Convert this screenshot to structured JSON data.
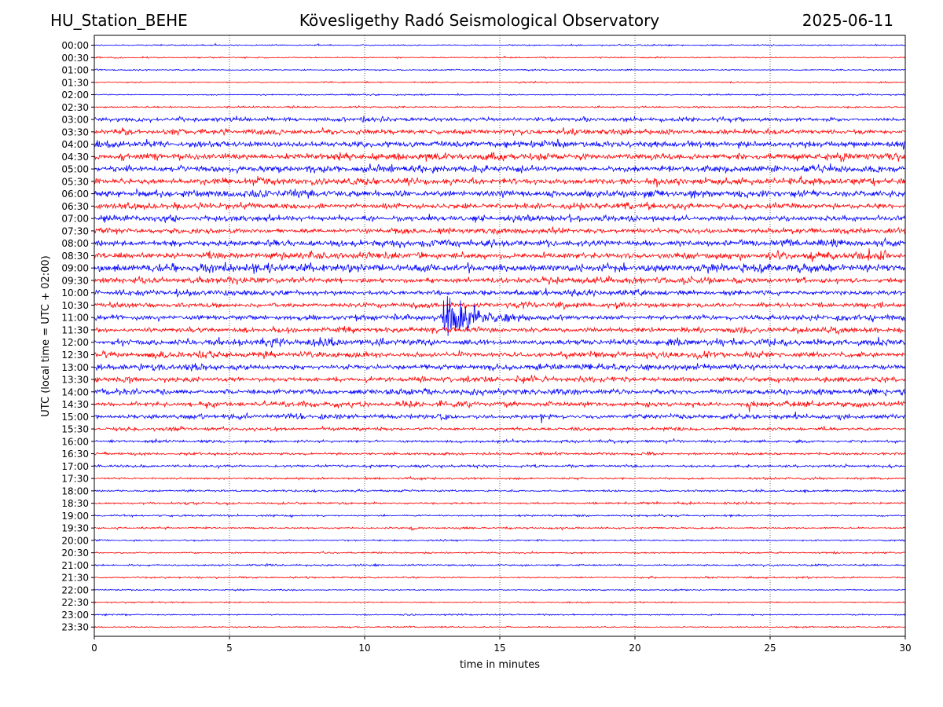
{
  "header": {
    "station": "HU_Station_BEHE",
    "observatory": "Kövesligethy Radó Seismological Observatory",
    "date": "2025-06-11"
  },
  "chart_data": {
    "type": "line",
    "title": "Kövesligethy Radó Seismological Observatory",
    "xlabel": "time in minutes",
    "ylabel": "UTC (local time = UTC + 02:00)",
    "xlim": [
      0,
      30
    ],
    "xticks": [
      0,
      5,
      10,
      15,
      20,
      25,
      30
    ],
    "grid": "vertical-dotted",
    "trace_colors": [
      "#0000ff",
      "#ff0000"
    ],
    "rows": [
      "00:00",
      "00:30",
      "01:00",
      "01:30",
      "02:00",
      "02:30",
      "03:00",
      "03:30",
      "04:00",
      "04:30",
      "05:00",
      "05:30",
      "06:00",
      "06:30",
      "07:00",
      "07:30",
      "08:00",
      "08:30",
      "09:00",
      "09:30",
      "10:00",
      "10:30",
      "11:00",
      "11:30",
      "12:00",
      "12:30",
      "13:00",
      "13:30",
      "14:00",
      "14:30",
      "15:00",
      "15:30",
      "16:00",
      "16:30",
      "17:00",
      "17:30",
      "18:00",
      "18:30",
      "19:00",
      "19:30",
      "20:00",
      "20:30",
      "21:00",
      "21:30",
      "22:00",
      "22:30",
      "23:00",
      "23:30"
    ],
    "noise_level": [
      0.5,
      0.5,
      0.5,
      0.5,
      0.5,
      0.6,
      1.5,
      2.0,
      2.5,
      2.5,
      2.5,
      2.5,
      2.6,
      2.2,
      2.2,
      2.0,
      2.5,
      2.5,
      3.2,
      2.2,
      2.0,
      2.0,
      2.0,
      2.0,
      2.5,
      2.2,
      2.2,
      2.0,
      2.2,
      2.0,
      1.8,
      1.2,
      1.0,
      1.0,
      1.0,
      0.8,
      0.8,
      0.8,
      0.7,
      0.7,
      0.6,
      0.6,
      0.7,
      0.6,
      0.5,
      0.5,
      0.5,
      0.5
    ],
    "events": [
      {
        "row": "11:00",
        "start_min": 12.9,
        "amplitude": 30,
        "decay_min": 1.2
      },
      {
        "row": "11:30",
        "start_min": 27.4,
        "amplitude": 6,
        "decay_min": 0.3
      },
      {
        "row": "08:30",
        "start_min": 28.0,
        "amplitude": 6,
        "decay_min": 2.0
      },
      {
        "row": "08:30",
        "start_min": 26.5,
        "amplitude": 7,
        "decay_min": 0.2
      },
      {
        "row": "15:00",
        "start_min": 16.5,
        "amplitude": 8,
        "decay_min": 0.2
      },
      {
        "row": "14:30",
        "start_min": 24.1,
        "amplitude": 6,
        "decay_min": 0.3
      },
      {
        "row": "14:30",
        "start_min": 4.1,
        "amplitude": 5,
        "decay_min": 0.3
      },
      {
        "row": "03:00",
        "start_min": 9.8,
        "amplitude": 4,
        "decay_min": 1.0
      },
      {
        "row": "09:00",
        "start_min": 7.4,
        "amplitude": 6,
        "decay_min": 0.4
      },
      {
        "row": "19:30",
        "start_min": 11.6,
        "amplitude": 4,
        "decay_min": 0.3
      },
      {
        "row": "05:00",
        "start_min": 22.5,
        "amplitude": 4,
        "decay_min": 0.8
      }
    ]
  }
}
